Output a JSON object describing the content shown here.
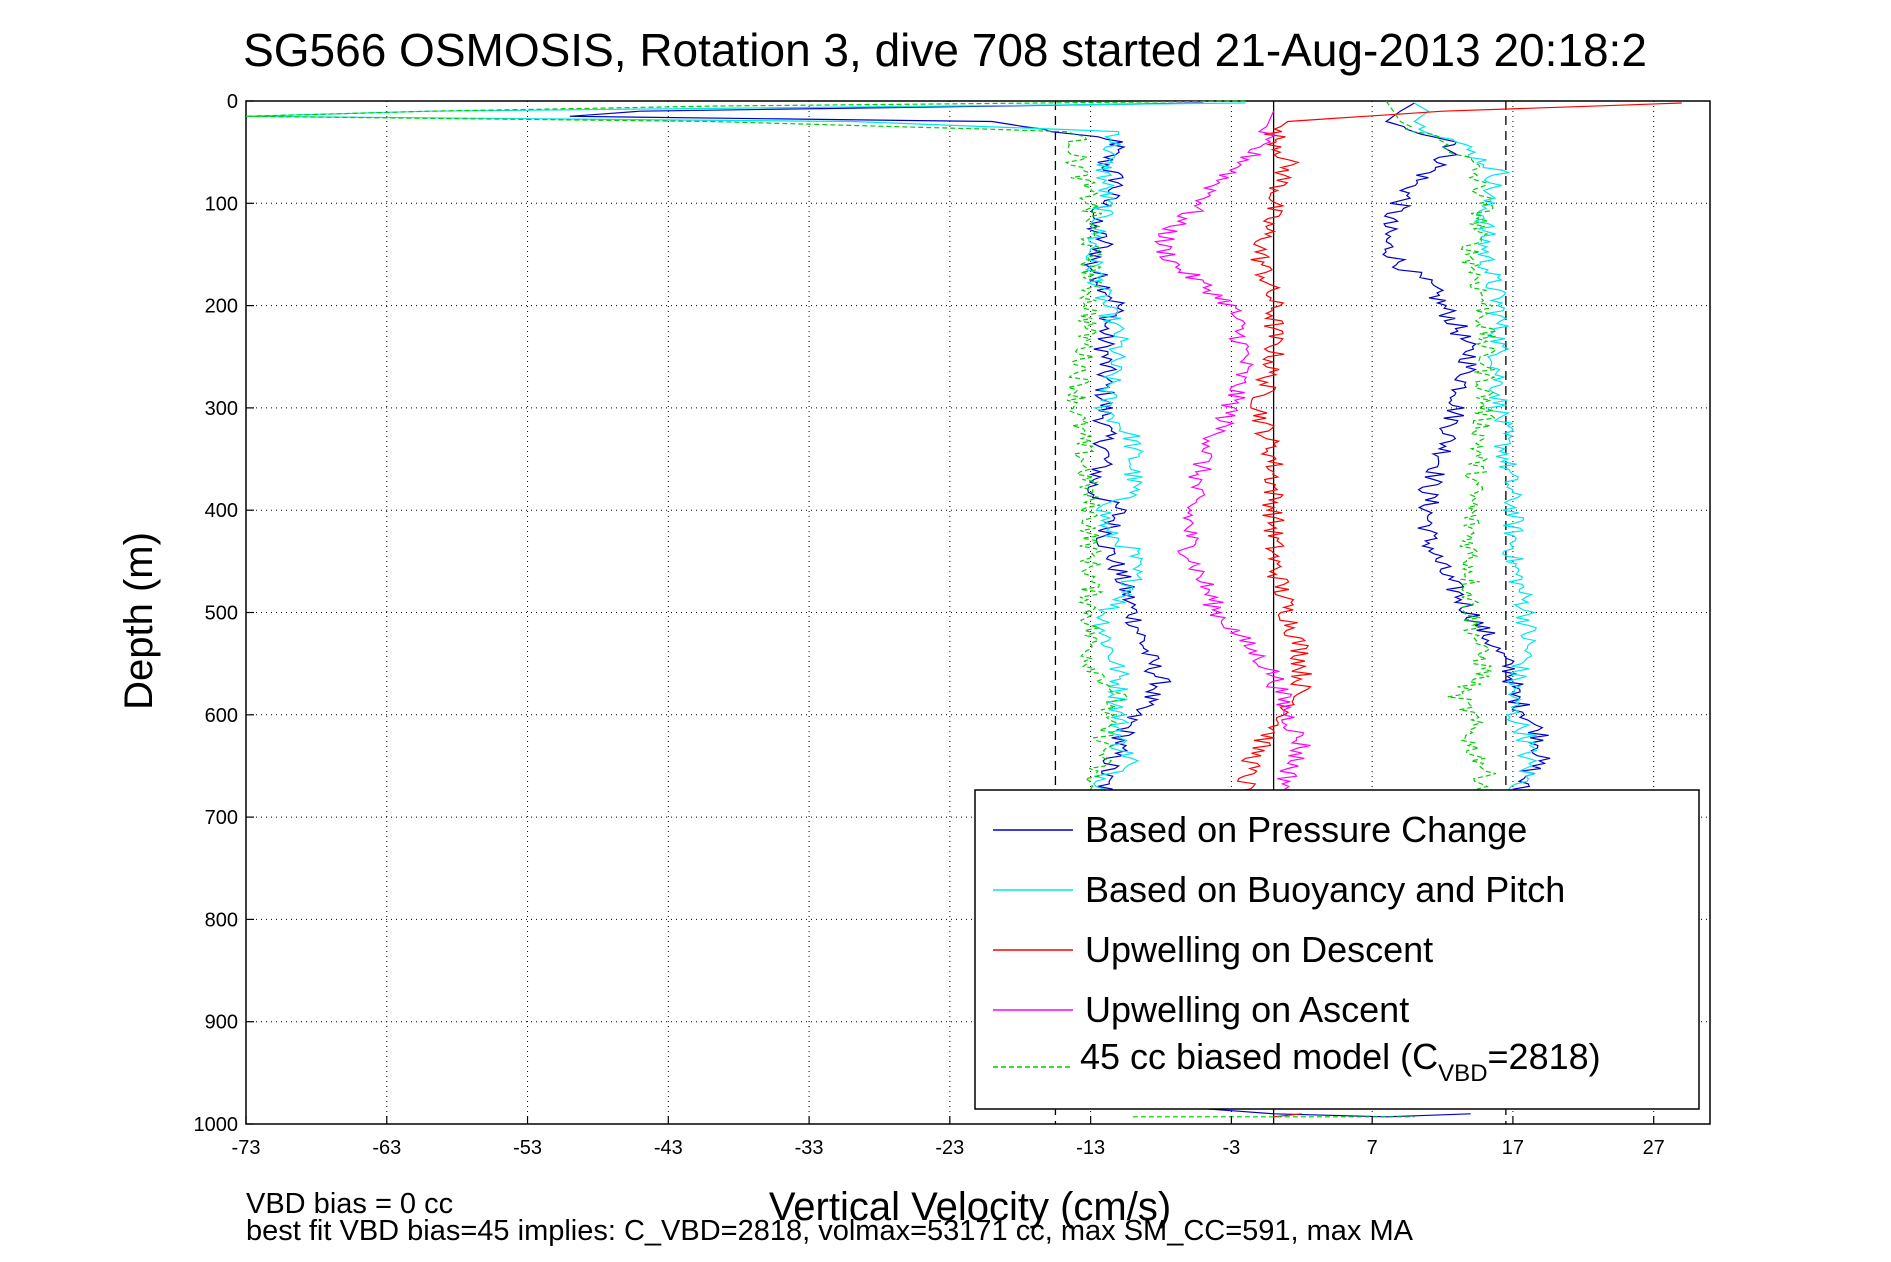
{
  "chart_data": {
    "type": "line",
    "title": "SG566 OSMOSIS, Rotation 3, dive 708 started 21-Aug-2013 20:18:2",
    "xlabel": "Vertical Velocity (cm/s)",
    "ylabel": "Depth (m)",
    "xlim": [
      -73,
      31
    ],
    "ylim": [
      0,
      1000
    ],
    "y_reversed": true,
    "grid": true,
    "x_ticks": [
      "-73",
      "-63",
      "-53",
      "-43",
      "-33",
      "-23",
      "-13",
      "-3",
      "7",
      "17",
      "27"
    ],
    "y_ticks": [
      "0",
      "100",
      "200",
      "300",
      "400",
      "500",
      "600",
      "700",
      "800",
      "900",
      "1000"
    ],
    "legend_position": "bottom-right",
    "reference_lines": [
      {
        "x": -15.5,
        "style": "dashed",
        "color": "#000000"
      },
      {
        "x": 0,
        "style": "solid",
        "color": "#000000"
      },
      {
        "x": 16.5,
        "style": "dashed",
        "color": "#000000"
      }
    ],
    "series": [
      {
        "name": "Based on Pressure Change",
        "color": "#0000cc",
        "dash": "solid",
        "branches": [
          {
            "depth": [
              2,
              10,
              15,
              20,
              40,
              60,
              80,
              100,
              120,
              140,
              160,
              180,
              200,
              220,
              250,
              300,
              350,
              380,
              400,
              430,
              460,
              500,
              540,
              570,
              600,
              630,
              660,
              680
            ],
            "velocity": [
              -5,
              -45,
              -50,
              -20,
              -11,
              -12,
              -11,
              -12,
              -13,
              -12,
              -13,
              -12,
              -11,
              -12,
              -12,
              -12,
              -12,
              -13,
              -11,
              -12,
              -11,
              -10,
              -9,
              -8,
              -10,
              -11,
              -12,
              -12
            ]
          },
          {
            "depth": [
              2,
              10,
              20,
              40,
              60,
              80,
              100,
              120,
              140,
              160,
              180,
              200,
              220,
              250,
              300,
              350,
              380,
              400,
              430,
              460,
              500,
              540,
              560,
              580,
              600,
              620,
              640,
              660,
              680
            ],
            "velocity": [
              10,
              9,
              8,
              13,
              12,
              10,
              9,
              8,
              8,
              9,
              11,
              12,
              13,
              14,
              13,
              12,
              11,
              11,
              11,
              12,
              14,
              16,
              17,
              17,
              18,
              19,
              19,
              18,
              17
            ]
          },
          {
            "depth": [
              985,
              990,
              993,
              990
            ],
            "velocity": [
              -5,
              0,
              8,
              14
            ]
          }
        ]
      },
      {
        "name": "Based on Buoyancy and Pitch",
        "color": "#00e5ee",
        "dash": "solid",
        "branches": [
          {
            "depth": [
              2,
              10,
              15,
              20,
              30,
              60,
              100,
              150,
              200,
              230,
              300,
              330,
              380,
              400,
              420,
              440,
              480,
              500,
              520,
              560,
              580,
              600,
              630,
              645,
              660,
              680
            ],
            "velocity": [
              -2,
              -60,
              -73,
              -30,
              -11,
              -12,
              -12,
              -13,
              -12,
              -11,
              -12,
              -10,
              -10,
              -12,
              -12,
              -10,
              -10,
              -12,
              -12,
              -11,
              -11,
              -11,
              -11,
              -10,
              -12,
              -12
            ]
          },
          {
            "depth": [
              2,
              10,
              20,
              40,
              70,
              100,
              150,
              200,
              250,
              300,
              400,
              450,
              500,
              540,
              570,
              600,
              620,
              640,
              660,
              680
            ],
            "velocity": [
              10,
              11,
              10,
              13,
              16,
              15,
              15,
              16,
              16,
              16,
              17,
              17,
              18,
              18,
              17,
              17,
              18,
              18,
              18,
              17
            ]
          }
        ]
      },
      {
        "name": "Upwelling on Descent",
        "color": "#ff0000",
        "dash": "solid",
        "branches": [
          {
            "depth": [
              2,
              10,
              20,
              30,
              60,
              100,
              150,
              200,
              250,
              300,
              350,
              400,
              450,
              500,
              540,
              570,
              600,
              630,
              660,
              680
            ],
            "velocity": [
              29,
              12,
              1,
              0,
              1,
              0,
              -1,
              0,
              0,
              -1,
              0,
              0,
              0,
              1,
              2,
              2,
              1,
              -1,
              -2,
              -2
            ]
          },
          {
            "depth": [
              993,
              990
            ],
            "velocity": [
              0,
              2
            ]
          }
        ]
      },
      {
        "name": "Upwelling on Ascent",
        "color": "#ff00ff",
        "dash": "solid",
        "branches": [
          {
            "depth": [
              10,
              40,
              60,
              80,
              100,
              120,
              140,
              160,
              180,
              200,
              250,
              300,
              350,
              400,
              440,
              470,
              500,
              530,
              560,
              600,
              630,
              660,
              680
            ],
            "velocity": [
              0,
              -1,
              -2,
              -4,
              -5,
              -7,
              -8,
              -7,
              -5,
              -3,
              -2,
              -3,
              -5,
              -6,
              -6,
              -5,
              -4,
              -2,
              0,
              1,
              2,
              1,
              1
            ]
          }
        ]
      },
      {
        "name": "45 cc biased model (C_VBD=2818)",
        "color": "#00cc00",
        "dash": "dashed",
        "branches": [
          {
            "depth": [
              0,
              5,
              10,
              15,
              20,
              30,
              60,
              100,
              150,
              200,
              300,
              400,
              500,
              550,
              580,
              600,
              640,
              660,
              680
            ],
            "velocity": [
              -2,
              -40,
              -60,
              -73,
              -40,
              -14,
              -14,
              -13,
              -13,
              -13,
              -14,
              -13,
              -13,
              -13,
              -11,
              -12,
              -12,
              -13,
              -13
            ]
          },
          {
            "depth": [
              0,
              20,
              40,
              60,
              100,
              150,
              200,
              250,
              300,
              400,
              500,
              560,
              580,
              600,
              630,
              650,
              680
            ],
            "velocity": [
              8,
              9,
              12,
              14,
              15,
              14,
              15,
              15,
              15,
              14,
              14,
              15,
              13,
              14,
              14,
              15,
              15
            ]
          },
          {
            "depth": [
              993,
              993
            ],
            "velocity": [
              -10,
              10
            ]
          }
        ]
      }
    ],
    "legend_entries": [
      {
        "text": "Based on Pressure Change"
      },
      {
        "text": "Based on Buoyancy and Pitch"
      },
      {
        "text": "Upwelling on Descent"
      },
      {
        "text": "Upwelling on Ascent"
      },
      {
        "main": "45 cc biased model (C",
        "sub": "VBD",
        "tail": "=2818)"
      }
    ],
    "annotations": [
      "VBD bias = 0 cc",
      "best fit VBD bias=45 implies: C_VBD=2818, volmax=53171 cc, max SM_CC=591, max MA"
    ]
  }
}
